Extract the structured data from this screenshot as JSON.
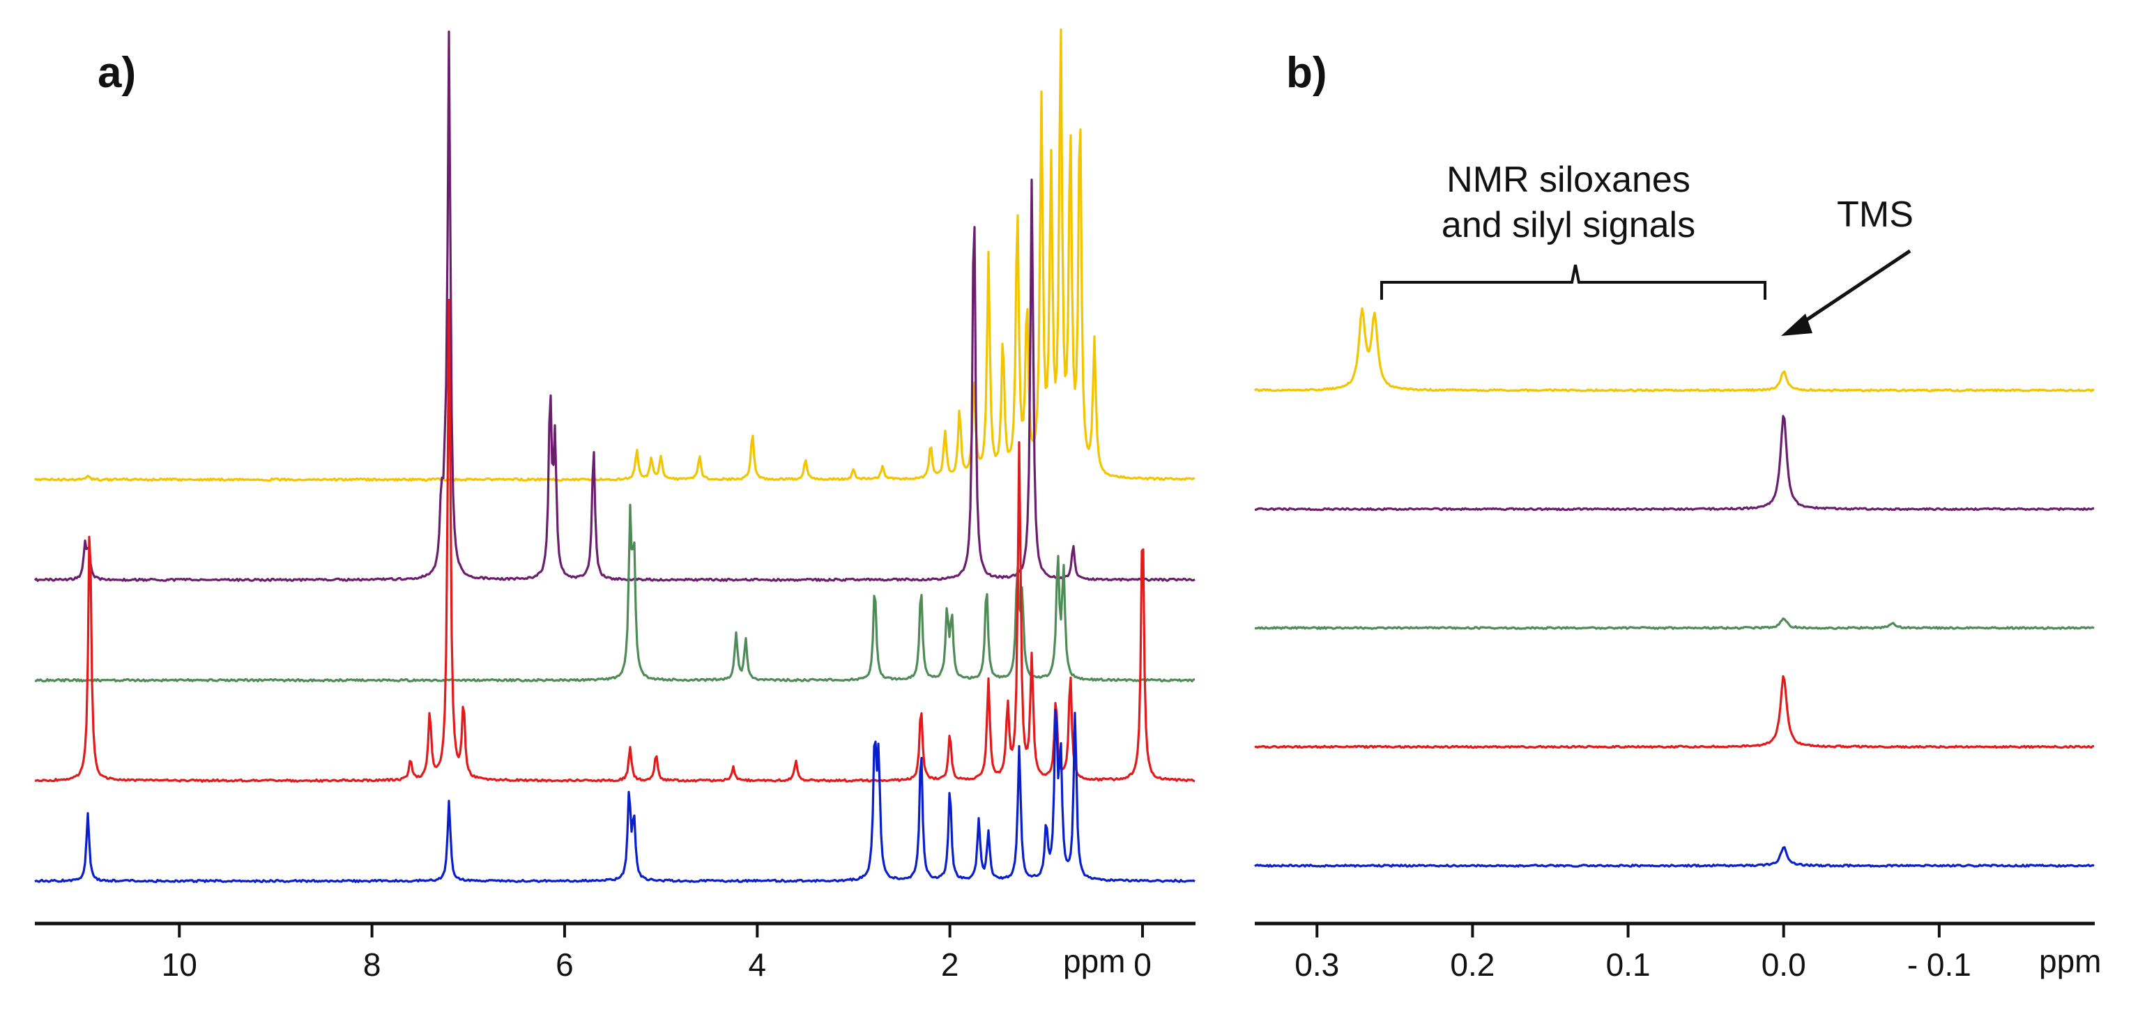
{
  "chart_data": [
    {
      "panel": "a)",
      "type": "line",
      "title": "",
      "xlabel": "ppm",
      "xlim": [
        11.5,
        -0.55
      ],
      "x_reversed": true,
      "xticks": [
        "10",
        "8",
        "6",
        "4",
        "2",
        "0"
      ],
      "xtick_values": [
        10,
        8,
        6,
        4,
        2,
        0
      ],
      "grid": false,
      "series": [
        {
          "name": "yellow spectrum",
          "color": "#F2C500",
          "baseline": 0.0,
          "peaks": [
            {
              "x": 10.95,
              "h": 0.006
            },
            {
              "x": 5.25,
              "h": 0.045
            },
            {
              "x": 5.1,
              "h": 0.03
            },
            {
              "x": 5.0,
              "h": 0.035
            },
            {
              "x": 4.6,
              "h": 0.035
            },
            {
              "x": 4.05,
              "h": 0.07
            },
            {
              "x": 3.5,
              "h": 0.03
            },
            {
              "x": 3.0,
              "h": 0.015
            },
            {
              "x": 2.7,
              "h": 0.02
            },
            {
              "x": 2.2,
              "h": 0.05
            },
            {
              "x": 2.05,
              "h": 0.07
            },
            {
              "x": 1.9,
              "h": 0.1
            },
            {
              "x": 1.75,
              "h": 0.15
            },
            {
              "x": 1.6,
              "h": 0.33
            },
            {
              "x": 1.45,
              "h": 0.2
            },
            {
              "x": 1.3,
              "h": 0.4
            },
            {
              "x": 1.2,
              "h": 0.25
            },
            {
              "x": 1.05,
              "h": 0.55
            },
            {
              "x": 0.95,
              "h": 0.45
            },
            {
              "x": 0.85,
              "h": 0.65
            },
            {
              "x": 0.75,
              "h": 0.5
            },
            {
              "x": 0.65,
              "h": 0.55
            },
            {
              "x": 0.5,
              "h": 0.2
            }
          ]
        },
        {
          "name": "purple spectrum",
          "color": "#6B1E6E",
          "baseline": -0.15,
          "peaks": [
            {
              "x": 10.98,
              "h": 0.05
            },
            {
              "x": 10.94,
              "h": 0.045
            },
            {
              "x": 7.28,
              "h": 0.1
            },
            {
              "x": 7.24,
              "h": 0.09
            },
            {
              "x": 7.2,
              "h": 0.8
            },
            {
              "x": 6.15,
              "h": 0.27
            },
            {
              "x": 6.1,
              "h": 0.2
            },
            {
              "x": 5.7,
              "h": 0.2
            },
            {
              "x": 1.75,
              "h": 0.58
            },
            {
              "x": 1.15,
              "h": 0.6
            },
            {
              "x": 0.72,
              "h": 0.05
            }
          ]
        },
        {
          "name": "green spectrum",
          "color": "#4E8B57",
          "baseline": -0.3,
          "peaks": [
            {
              "x": 5.32,
              "h": 0.23
            },
            {
              "x": 5.28,
              "h": 0.18
            },
            {
              "x": 4.22,
              "h": 0.07
            },
            {
              "x": 4.12,
              "h": 0.06
            },
            {
              "x": 2.78,
              "h": 0.14
            },
            {
              "x": 2.3,
              "h": 0.14
            },
            {
              "x": 2.03,
              "h": 0.1
            },
            {
              "x": 1.98,
              "h": 0.09
            },
            {
              "x": 1.62,
              "h": 0.14
            },
            {
              "x": 1.3,
              "h": 0.16
            },
            {
              "x": 1.25,
              "h": 0.12
            },
            {
              "x": 0.88,
              "h": 0.18
            },
            {
              "x": 0.82,
              "h": 0.16
            }
          ]
        },
        {
          "name": "red spectrum",
          "color": "#E31A1C",
          "baseline": -0.45,
          "peaks": [
            {
              "x": 10.93,
              "h": 0.4
            },
            {
              "x": 7.6,
              "h": 0.03
            },
            {
              "x": 7.4,
              "h": 0.1
            },
            {
              "x": 7.2,
              "h": 0.72
            },
            {
              "x": 7.05,
              "h": 0.11
            },
            {
              "x": 5.32,
              "h": 0.05
            },
            {
              "x": 5.05,
              "h": 0.04
            },
            {
              "x": 4.25,
              "h": 0.02
            },
            {
              "x": 3.6,
              "h": 0.03
            },
            {
              "x": 2.3,
              "h": 0.11
            },
            {
              "x": 2.0,
              "h": 0.07
            },
            {
              "x": 1.6,
              "h": 0.15
            },
            {
              "x": 1.4,
              "h": 0.11
            },
            {
              "x": 1.28,
              "h": 0.5
            },
            {
              "x": 1.15,
              "h": 0.18
            },
            {
              "x": 0.9,
              "h": 0.12
            },
            {
              "x": 0.75,
              "h": 0.16
            },
            {
              "x": 0.0,
              "h": 0.4
            }
          ]
        },
        {
          "name": "blue spectrum",
          "color": "#0A1FCC",
          "baseline": -0.6,
          "peaks": [
            {
              "x": 10.95,
              "h": 0.1
            },
            {
              "x": 7.2,
              "h": 0.12
            },
            {
              "x": 5.33,
              "h": 0.13
            },
            {
              "x": 5.28,
              "h": 0.09
            },
            {
              "x": 2.78,
              "h": 0.2
            },
            {
              "x": 2.74,
              "h": 0.17
            },
            {
              "x": 2.3,
              "h": 0.2
            },
            {
              "x": 2.0,
              "h": 0.14
            },
            {
              "x": 1.7,
              "h": 0.09
            },
            {
              "x": 1.6,
              "h": 0.07
            },
            {
              "x": 1.28,
              "h": 0.2
            },
            {
              "x": 1.0,
              "h": 0.08
            },
            {
              "x": 0.9,
              "h": 0.25
            },
            {
              "x": 0.85,
              "h": 0.18
            },
            {
              "x": 0.7,
              "h": 0.25
            }
          ]
        }
      ]
    },
    {
      "panel": "b)",
      "type": "line",
      "title": "",
      "xlabel": "ppm",
      "xlim": [
        0.34,
        -0.2
      ],
      "x_reversed": true,
      "xticks": [
        "0.3",
        "0.2",
        "0.1",
        "0.0",
        "- 0.1"
      ],
      "xtick_values": [
        0.3,
        0.2,
        0.1,
        0.0,
        -0.1
      ],
      "grid": false,
      "annotations": [
        {
          "text": "NMR siloxanes",
          "x": 0.13,
          "kind": "bracket-label",
          "line": 1
        },
        {
          "text": "and silyl signals",
          "x": 0.13,
          "kind": "bracket-label",
          "line": 2
        },
        {
          "text": "TMS",
          "x": -0.09,
          "kind": "arrow-label",
          "points_to_x": 0.0
        }
      ],
      "bracket_range": [
        0.26,
        0.0
      ],
      "series": [
        {
          "name": "yellow spectrum",
          "color": "#F2C500",
          "baseline": 0.0,
          "peaks": [
            {
              "x": 0.271,
              "h": 0.16
            },
            {
              "x": 0.263,
              "h": 0.15
            },
            {
              "x": 0.0,
              "h": 0.04
            }
          ]
        },
        {
          "name": "purple spectrum",
          "color": "#6B1E6E",
          "baseline": -0.25,
          "peaks": [
            {
              "x": 0.0,
              "h": 0.2
            }
          ]
        },
        {
          "name": "green spectrum",
          "color": "#4E8B57",
          "baseline": -0.5,
          "peaks": [
            {
              "x": 0.0,
              "h": 0.02
            },
            {
              "x": -0.07,
              "h": 0.01
            }
          ]
        },
        {
          "name": "red spectrum",
          "color": "#E31A1C",
          "baseline": -0.75,
          "peaks": [
            {
              "x": 0.0,
              "h": 0.15
            }
          ]
        },
        {
          "name": "blue spectrum",
          "color": "#0A1FCC",
          "baseline": -1.0,
          "peaks": [
            {
              "x": 0.0,
              "h": 0.04
            }
          ]
        }
      ]
    }
  ]
}
